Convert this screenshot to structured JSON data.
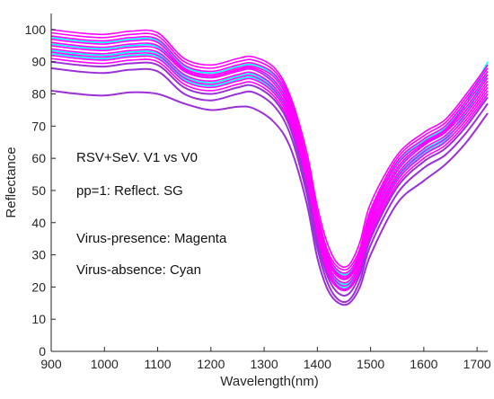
{
  "chart_data": {
    "type": "line",
    "title": "",
    "xlabel": "Wavelength(nm)",
    "ylabel": "Reflectance",
    "xlim": [
      900,
      1720
    ],
    "ylim": [
      0,
      105
    ],
    "grid": false,
    "x_ticks": [
      900,
      1000,
      1100,
      1200,
      1300,
      1400,
      1500,
      1600,
      1700
    ],
    "y_ticks": [
      0,
      10,
      20,
      30,
      40,
      50,
      60,
      70,
      80,
      90,
      100
    ],
    "x": [
      900,
      950,
      1000,
      1050,
      1100,
      1150,
      1200,
      1250,
      1280,
      1320,
      1350,
      1380,
      1400,
      1420,
      1440,
      1460,
      1480,
      1500,
      1550,
      1600,
      1640,
      1680,
      1720
    ],
    "annotations": [
      "RSV+SeV. V1 vs V0",
      "pp=1: Reflect. SG",
      "Virus-presence: Magenta",
      "Virus-absence:  Cyan"
    ],
    "colors": {
      "magenta": "#ff00ff",
      "cyan": "#00ffff",
      "purple": "#9b30d9"
    },
    "series": [
      {
        "color": "magenta",
        "values": [
          100,
          99,
          98.5,
          99.5,
          99,
          91,
          89,
          91,
          91.5,
          88,
          79,
          62,
          45,
          33,
          27,
          27,
          34,
          46,
          61,
          68,
          72,
          80,
          89
        ]
      },
      {
        "color": "magenta",
        "values": [
          99,
          98,
          97.5,
          98.5,
          98,
          90,
          88,
          90,
          90.5,
          87,
          78,
          60,
          43,
          31,
          26,
          26,
          32,
          44,
          60,
          67,
          71,
          79,
          88
        ]
      },
      {
        "color": "magenta",
        "values": [
          98,
          97,
          96.5,
          97.5,
          97,
          89,
          87,
          89,
          89.5,
          86,
          77,
          59,
          42,
          30,
          25,
          25,
          31,
          43,
          59,
          66,
          70,
          78,
          87
        ]
      },
      {
        "color": "magenta",
        "values": [
          97,
          96,
          95.5,
          96.5,
          96,
          88,
          86,
          88,
          88.5,
          85,
          76,
          58,
          41,
          29,
          24,
          24,
          30,
          42,
          58,
          65,
          69,
          77,
          86
        ]
      },
      {
        "color": "magenta",
        "values": [
          96,
          95,
          94.5,
          95.5,
          95,
          87.5,
          85.5,
          87.5,
          88,
          84,
          75,
          57,
          40,
          28.5,
          23.5,
          23.5,
          29.5,
          41,
          57,
          64.5,
          68.5,
          76,
          85
        ]
      },
      {
        "color": "magenta",
        "values": [
          95,
          94,
          93.5,
          94.5,
          94,
          87,
          85,
          87,
          87.5,
          83,
          74,
          56,
          39,
          28,
          23,
          23,
          29,
          40,
          56,
          64,
          68,
          75,
          84
        ]
      },
      {
        "color": "magenta",
        "values": [
          94,
          93,
          92.5,
          93.5,
          93,
          86,
          84,
          86,
          86.5,
          82,
          73,
          55,
          38,
          27,
          22,
          22,
          28,
          39,
          55,
          63,
          67,
          74,
          83
        ]
      },
      {
        "color": "magenta",
        "values": [
          93,
          92,
          91.5,
          92.5,
          92,
          85,
          83,
          85,
          85.5,
          81,
          72,
          54,
          37,
          26,
          21,
          21,
          27,
          38,
          54,
          62,
          66,
          73,
          82
        ]
      },
      {
        "color": "magenta",
        "values": [
          92,
          91,
          90.5,
          91.5,
          91,
          84,
          82,
          84,
          84.5,
          80,
          71,
          53,
          36,
          25,
          20,
          20,
          26,
          37,
          53,
          61,
          65,
          72,
          81
        ]
      },
      {
        "color": "magenta",
        "values": [
          91,
          90,
          89.5,
          90.5,
          90,
          83,
          81,
          83,
          83.5,
          79,
          70,
          52,
          35,
          24,
          19.5,
          19.5,
          25,
          36,
          52,
          60,
          64,
          71,
          80
        ]
      },
      {
        "color": "cyan",
        "values": [
          97.5,
          96.5,
          96,
          97,
          96.5,
          88.5,
          86.5,
          88.5,
          89,
          85.5,
          76.5,
          58.5,
          41.5,
          29.5,
          24.5,
          24.5,
          30.5,
          42.5,
          58.5,
          65.5,
          69.5,
          78,
          90
        ]
      },
      {
        "color": "cyan",
        "values": [
          95.5,
          94.5,
          94,
          95,
          94.5,
          87,
          85,
          87,
          87.5,
          83.5,
          74.5,
          56.5,
          39.5,
          28,
          23,
          23,
          29,
          40.5,
          56.5,
          64,
          68,
          77,
          89
        ]
      },
      {
        "color": "cyan",
        "values": [
          93.5,
          92.5,
          92,
          93,
          92.5,
          85.5,
          83.5,
          85.5,
          86,
          81.5,
          72.5,
          54.5,
          37.5,
          26.5,
          21.5,
          21.5,
          27.5,
          38.5,
          54.5,
          62.5,
          66.5,
          75,
          87
        ]
      },
      {
        "color": "cyan",
        "values": [
          92.5,
          91.5,
          91,
          92,
          91.5,
          84.5,
          82.5,
          84.5,
          85,
          80.5,
          71.5,
          53.5,
          36.5,
          25.5,
          20.5,
          20.5,
          26.5,
          37.5,
          53.5,
          61.5,
          65.5,
          74,
          86
        ]
      },
      {
        "color": "purple",
        "values": [
          90,
          89,
          88.5,
          89.5,
          89,
          82,
          80,
          82,
          82.5,
          78,
          69,
          51,
          34,
          23,
          18,
          18,
          24,
          35,
          51,
          59,
          63,
          70,
          79
        ]
      },
      {
        "color": "purple",
        "values": [
          88,
          87,
          86.5,
          87.5,
          87,
          80,
          78,
          80,
          80.5,
          76,
          67,
          49,
          32,
          21,
          16,
          16,
          22,
          33,
          49,
          57,
          61,
          68,
          77
        ]
      },
      {
        "color": "purple",
        "values": [
          81,
          80,
          79.5,
          80.5,
          80,
          77,
          75,
          76,
          75.5,
          71,
          63,
          46,
          29,
          19,
          15,
          15,
          20,
          30,
          46,
          53,
          58,
          65,
          74
        ]
      }
    ]
  }
}
